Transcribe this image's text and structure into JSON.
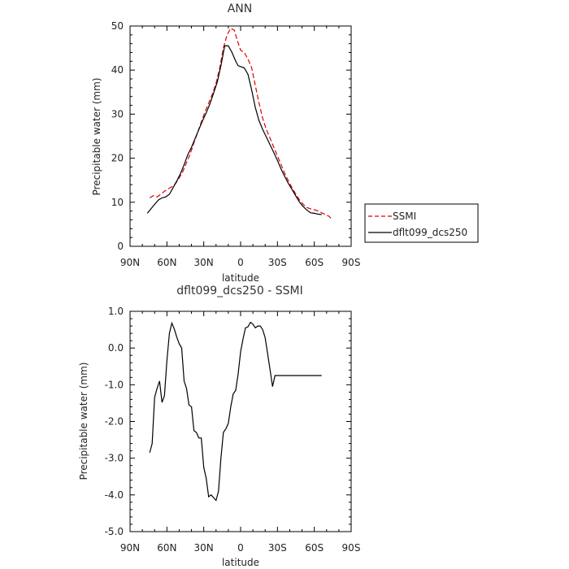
{
  "chart_data": [
    {
      "type": "line",
      "title": "ANN",
      "xlabel": "latitude",
      "ylabel": "Precipitable water  (mm)",
      "x_ticks": [
        "90N",
        "60N",
        "30N",
        "0",
        "30S",
        "60S",
        "90S"
      ],
      "x_tick_values": [
        -90,
        -60,
        -30,
        0,
        30,
        60,
        90
      ],
      "xlim": [
        -90,
        90
      ],
      "ylim": [
        0,
        50
      ],
      "y_ticks": [
        "0",
        "10",
        "20",
        "30",
        "40",
        "50"
      ],
      "y_tick_values": [
        0,
        10,
        20,
        30,
        40,
        50
      ],
      "series": [
        {
          "name": "SSMI",
          "color": "#dd0000",
          "dash": true,
          "x": [
            -74,
            -71,
            -68,
            -65,
            -62,
            -59,
            -56,
            -53,
            -50,
            -47,
            -44,
            -41,
            -38,
            -35,
            -32,
            -29,
            -26,
            -23,
            -20,
            -17,
            -14,
            -11,
            -8,
            -5,
            -3,
            0,
            3,
            6,
            9,
            12,
            15,
            18,
            21,
            24,
            27,
            30,
            33,
            36,
            39,
            42,
            45,
            48,
            51,
            54,
            57,
            60,
            63,
            66,
            69,
            72,
            75
          ],
          "y": [
            11,
            11.5,
            11.2,
            11.8,
            12.5,
            13,
            13.5,
            14.2,
            15.5,
            17,
            19,
            21,
            23.5,
            25.8,
            28.2,
            30.5,
            32.5,
            34.5,
            37,
            40.5,
            45,
            48,
            49.5,
            49,
            47,
            44.5,
            44,
            42.5,
            40.5,
            36.5,
            32.5,
            29,
            26.5,
            24.5,
            22.5,
            20.5,
            18.5,
            16.5,
            14.8,
            13.2,
            11.8,
            10.5,
            9.5,
            8.8,
            8.5,
            8.3,
            8,
            7.6,
            7.2,
            6.8,
            6
          ]
        },
        {
          "name": "dflt099_dcs250",
          "color": "#000000",
          "dash": false,
          "x": [
            -76,
            -73,
            -70,
            -67,
            -64,
            -61,
            -58,
            -55,
            -52,
            -49,
            -46,
            -43,
            -40,
            -37,
            -34,
            -31,
            -28,
            -25,
            -22,
            -19,
            -16,
            -13,
            -10,
            -7,
            -4,
            -2,
            0,
            3,
            6,
            9,
            12,
            15,
            18,
            21,
            24,
            27,
            30,
            33,
            36,
            39,
            42,
            45,
            48,
            51,
            54,
            57,
            60,
            63,
            66
          ],
          "y": [
            7.5,
            8.5,
            9.5,
            10.5,
            11,
            11.2,
            11.8,
            13.3,
            14.8,
            16.5,
            18.5,
            20.8,
            22.5,
            24.5,
            26.5,
            28.5,
            30.3,
            32.3,
            34.8,
            37.3,
            41,
            45.5,
            45.5,
            44,
            42,
            41,
            40.8,
            40.5,
            39,
            35.5,
            31.5,
            28.5,
            26.5,
            24.8,
            23,
            21.3,
            19.5,
            17.5,
            15.8,
            14.2,
            12.8,
            11.4,
            10,
            9,
            8.2,
            7.6,
            7.5,
            7.3,
            7.2
          ]
        }
      ],
      "legend_position": "right"
    },
    {
      "type": "line",
      "title": "dflt099_dcs250  -  SSMI",
      "xlabel": "latitude",
      "ylabel": "Precipitable water  (mm)",
      "x_ticks": [
        "90N",
        "60N",
        "30N",
        "0",
        "30S",
        "60S",
        "90S"
      ],
      "x_tick_values": [
        -90,
        -60,
        -30,
        0,
        30,
        60,
        90
      ],
      "xlim": [
        -90,
        90
      ],
      "ylim": [
        -5,
        1
      ],
      "y_ticks": [
        "-5.0",
        "-4.0",
        "-3.0",
        "-2.0",
        "-1.0",
        "0.0",
        "1.0"
      ],
      "y_tick_values": [
        -5,
        -4,
        -3,
        -2,
        -1,
        0,
        1
      ],
      "series": [
        {
          "color": "#000000",
          "x": [
            -74,
            -72,
            -70,
            -68,
            -66,
            -64,
            -62,
            -60,
            -58,
            -56,
            -54,
            -52,
            -50,
            -48,
            -46,
            -44,
            -42,
            -40,
            -38,
            -36,
            -34,
            -32,
            -30,
            -28,
            -26,
            -24,
            -22,
            -20,
            -18,
            -16,
            -14,
            -12,
            -10,
            -8,
            -6,
            -4,
            -2,
            0,
            2,
            4,
            6,
            8,
            10,
            12,
            14,
            16,
            18,
            20,
            22,
            24,
            26,
            28,
            30,
            32,
            34,
            36,
            38,
            40,
            42,
            44,
            46,
            48,
            50,
            52,
            54,
            56,
            58,
            60,
            62,
            64,
            66
          ],
          "y": [
            -2.85,
            -2.6,
            -1.35,
            -1.1,
            -0.9,
            -1.48,
            -1.3,
            -0.35,
            0.4,
            0.68,
            0.52,
            0.3,
            0.12,
            0.0,
            -0.9,
            -1.1,
            -1.55,
            -1.6,
            -2.25,
            -2.3,
            -2.45,
            -2.45,
            -3.25,
            -3.55,
            -4.05,
            -4.0,
            -4.08,
            -4.15,
            -3.9,
            -3.0,
            -2.3,
            -2.2,
            -2.05,
            -1.6,
            -1.25,
            -1.15,
            -0.7,
            -0.1,
            0.25,
            0.55,
            0.58,
            0.7,
            0.65,
            0.55,
            0.6,
            0.6,
            0.5,
            0.28,
            -0.15,
            -0.6,
            -1.05,
            -0.75,
            -0.75,
            -0.75,
            -0.75,
            -0.75,
            -0.75,
            -0.75,
            -0.75,
            -0.75,
            -0.75,
            -0.75,
            -0.75,
            -0.75,
            -0.75,
            -0.75,
            -0.75,
            -0.75,
            -0.75,
            -0.75,
            -0.75
          ]
        }
      ]
    }
  ]
}
